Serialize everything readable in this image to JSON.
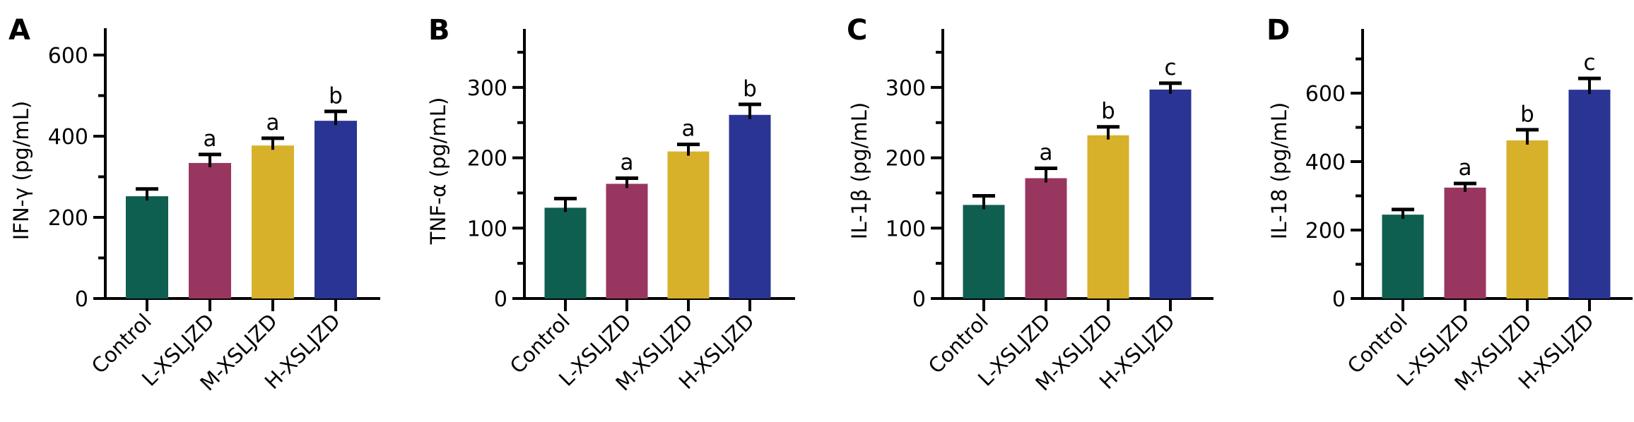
{
  "chart_data": [
    {
      "panel": "A",
      "type": "bar",
      "ylabel": "IFN-γ (pg/mL)",
      "categories": [
        "Control",
        "L-XSLJZD",
        "M-XSLJZD",
        "H-XSLJZD"
      ],
      "values": [
        252,
        334,
        377,
        438
      ],
      "error": [
        18,
        21,
        18,
        23
      ],
      "significance": [
        "",
        "a",
        "a",
        "b"
      ],
      "ylim": [
        0,
        650
      ],
      "major_ticks": [
        0,
        200,
        400,
        600
      ],
      "minor_ticks": [
        100,
        300,
        500
      ],
      "grid": false
    },
    {
      "panel": "B",
      "type": "bar",
      "ylabel": "TNF-α (pg/mL)",
      "categories": [
        "Control",
        "L-XSLJZD",
        "M-XSLJZD",
        "H-XSLJZD"
      ],
      "values": [
        129,
        163,
        209,
        261
      ],
      "error": [
        13,
        8,
        10,
        15
      ],
      "significance": [
        "",
        "a",
        "a",
        "b"
      ],
      "ylim": [
        0,
        375
      ],
      "major_ticks": [
        0,
        100,
        200,
        300
      ],
      "minor_ticks": [
        50,
        150,
        250,
        350
      ],
      "grid": false
    },
    {
      "panel": "C",
      "type": "bar",
      "ylabel": "IL-1β (pg/mL)",
      "categories": [
        "Control",
        "L-XSLJZD",
        "M-XSLJZD",
        "H-XSLJZD"
      ],
      "values": [
        133,
        171,
        232,
        297
      ],
      "error": [
        13,
        14,
        12,
        9
      ],
      "significance": [
        "",
        "a",
        "b",
        "c"
      ],
      "ylim": [
        0,
        375
      ],
      "major_ticks": [
        0,
        100,
        200,
        300
      ],
      "minor_ticks": [
        50,
        150,
        250,
        350
      ],
      "grid": false
    },
    {
      "panel": "D",
      "type": "bar",
      "ylabel": "IL-18 (pg/mL)",
      "categories": [
        "Control",
        "L-XSLJZD",
        "M-XSLJZD",
        "H-XSLJZD"
      ],
      "values": [
        245,
        324,
        462,
        610
      ],
      "error": [
        15,
        12,
        31,
        33
      ],
      "significance": [
        "",
        "a",
        "b",
        "c"
      ],
      "ylim": [
        0,
        790
      ],
      "major_ticks": [
        0,
        200,
        400,
        600
      ],
      "minor_ticks": [
        100,
        300,
        500,
        700
      ],
      "grid": false
    }
  ],
  "colors": {
    "Control": "#0f5f50",
    "L-XSLJZD": "#99365f",
    "M-XSLJZD": "#d8b12a",
    "H-XSLJZD": "#2a3493",
    "axis": "#000000"
  }
}
